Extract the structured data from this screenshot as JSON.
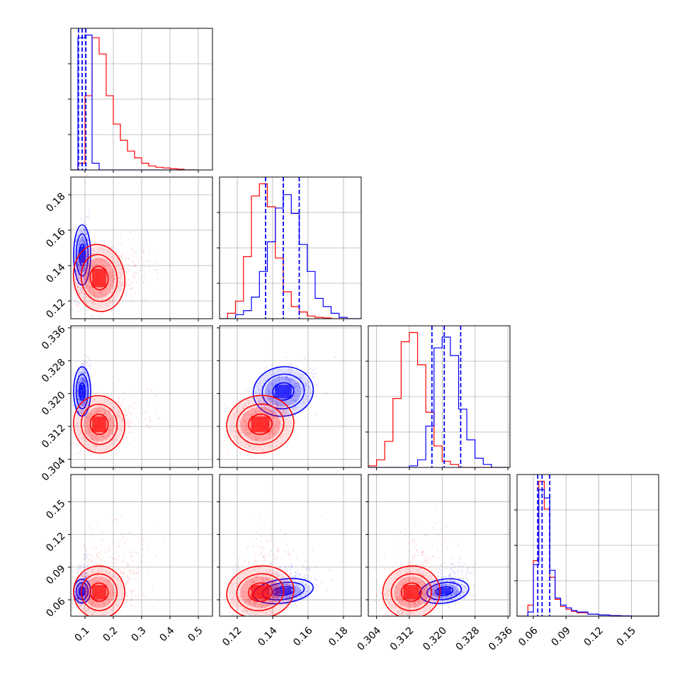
{
  "chart_data": {
    "type": "corner",
    "title": "",
    "n_params": 4,
    "param_labels": [
      "",
      "",
      "",
      ""
    ],
    "ranges": [
      [
        0.05,
        0.55
      ],
      [
        0.11,
        0.19
      ],
      [
        0.302,
        0.3365
      ],
      [
        0.045,
        0.175
      ]
    ],
    "ticks": [
      [
        "0.1",
        "0.2",
        "0.3",
        "0.4",
        "0.5"
      ],
      [
        "0.12",
        "0.14",
        "0.16",
        "0.18"
      ],
      [
        "0.304",
        "0.312",
        "0.320",
        "0.328",
        "0.336"
      ],
      [
        "0.06",
        "0.09",
        "0.12",
        "0.15"
      ]
    ],
    "grid": true,
    "legend": "none",
    "series": [
      {
        "color": "#0000ff",
        "means": [
          0.09,
          0.146,
          0.3205,
          0.068
        ],
        "sigmas": [
          0.012,
          0.0085,
          0.003,
          0.0055
        ],
        "quantiles": [
          [
            0.077,
            0.09,
            0.103
          ],
          [
            0.136,
            0.146,
            0.155
          ],
          [
            0.3175,
            0.3205,
            0.3245
          ],
          [
            0.064,
            0.068,
            0.075
          ]
        ]
      },
      {
        "color": "#ff0000",
        "means": [
          0.15,
          0.133,
          0.3125,
          0.067
        ],
        "sigmas": [
          0.045,
          0.0095,
          0.0035,
          0.012
        ]
      }
    ],
    "histograms": {
      "param_1": {
        "edges": [
          0.05,
          0.075,
          0.1,
          0.125,
          0.15,
          0.175,
          0.2,
          0.225,
          0.25,
          0.275,
          0.3,
          0.325,
          0.35,
          0.375,
          0.4,
          0.425,
          0.45,
          0.475,
          0.5
        ],
        "blue": [
          0,
          0.98,
          1.0,
          0.05,
          0,
          0,
          0,
          0,
          0,
          0,
          0,
          0,
          0,
          0,
          0,
          0,
          0,
          0
        ],
        "red": [
          0,
          0.05,
          0.55,
          0.98,
          0.86,
          0.55,
          0.34,
          0.22,
          0.14,
          0.09,
          0.05,
          0.03,
          0.02,
          0.015,
          0.01,
          0.005,
          0,
          0
        ]
      },
      "param_2": {
        "edges": [
          0.11,
          0.1145,
          0.119,
          0.1235,
          0.128,
          0.1325,
          0.137,
          0.1415,
          0.146,
          0.1505,
          0.155,
          0.1595,
          0.164,
          0.1685,
          0.173,
          0.1775,
          0.182,
          0.1865,
          0.19
        ],
        "blue": [
          0,
          0,
          0.03,
          0.06,
          0.16,
          0.35,
          0.57,
          0.82,
          0.92,
          0.78,
          0.55,
          0.35,
          0.15,
          0.09,
          0.04,
          0.01,
          0,
          0
        ],
        "red": [
          0,
          0.04,
          0.13,
          0.46,
          0.91,
          1.0,
          0.83,
          0.45,
          0.2,
          0.09,
          0.05,
          0.02,
          0.01,
          0.005,
          0,
          0,
          0,
          0
        ]
      },
      "param_3": {
        "edges": [
          0.302,
          0.304,
          0.306,
          0.308,
          0.31,
          0.312,
          0.314,
          0.316,
          0.318,
          0.32,
          0.322,
          0.324,
          0.326,
          0.328,
          0.33,
          0.332,
          0.334,
          0.336
        ],
        "blue": [
          0,
          0,
          0,
          0,
          0,
          0.01,
          0.05,
          0.27,
          0.78,
          0.85,
          0.73,
          0.38,
          0.18,
          0.06,
          0.02,
          0,
          0
        ],
        "red": [
          0.01,
          0.05,
          0.17,
          0.45,
          0.82,
          0.88,
          0.67,
          0.36,
          0.14,
          0.04,
          0.02,
          0,
          0,
          0,
          0,
          0,
          0
        ]
      },
      "param_4": {
        "edges": [
          0.045,
          0.05,
          0.055,
          0.06,
          0.065,
          0.07,
          0.075,
          0.08,
          0.085,
          0.09,
          0.095,
          0.1,
          0.11,
          0.12,
          0.13,
          0.14,
          0.15,
          0.16,
          0.175
        ],
        "blue": [
          0,
          0,
          0.03,
          0.37,
          0.91,
          0.85,
          0.33,
          0.13,
          0.08,
          0.06,
          0.04,
          0.03,
          0.015,
          0.008,
          0.004,
          0.002,
          0,
          0
        ],
        "red": [
          0,
          0,
          0.08,
          0.4,
          0.97,
          0.77,
          0.28,
          0.12,
          0.07,
          0.05,
          0.035,
          0.025,
          0.015,
          0.008,
          0.004,
          0.002,
          0,
          0
        ]
      }
    }
  }
}
